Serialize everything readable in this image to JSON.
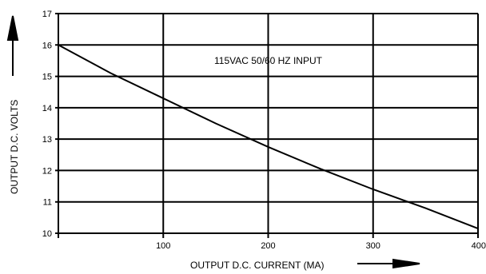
{
  "chart_data": {
    "type": "line",
    "title": "",
    "xlabel": "OUTPUT D.C. CURRENT (MA)",
    "ylabel": "OUTPUT D.C. VOLTS",
    "xlim": [
      0,
      400
    ],
    "ylim": [
      10,
      17
    ],
    "x_ticks": [
      100,
      200,
      300,
      400
    ],
    "y_ticks": [
      10,
      11,
      12,
      13,
      14,
      15,
      16,
      17
    ],
    "grid": true,
    "annotations": [
      {
        "text": "115VAC 50/60 HZ INPUT",
        "x": 200,
        "y": 15.4
      }
    ],
    "series": [
      {
        "x": [
          0,
          50,
          100,
          150,
          200,
          250,
          300,
          350,
          400
        ],
        "y": [
          16.0,
          15.1,
          14.3,
          13.5,
          12.75,
          12.05,
          11.4,
          10.8,
          10.15
        ]
      }
    ]
  }
}
